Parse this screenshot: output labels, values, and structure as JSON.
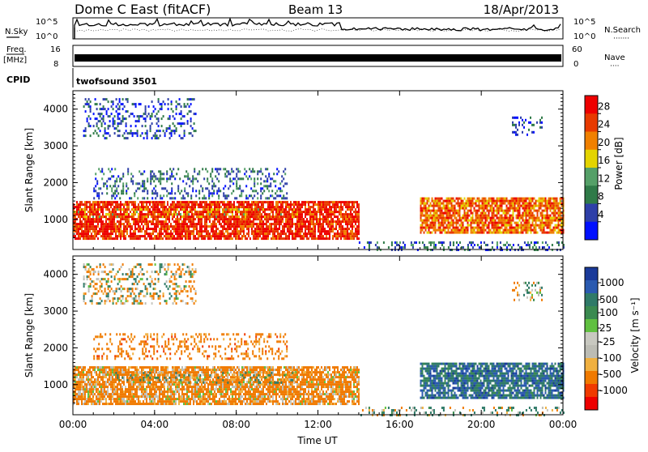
{
  "header": {
    "station": "Dome C East (fitACF)",
    "beam": "Beam 13",
    "date": "18/Apr/2013"
  },
  "aux_labels": {
    "nsky": "N.Sky",
    "nsearch": "N.Search",
    "nsearch_dots": "·······",
    "freq_line1": "Freq.",
    "freq_line2": "[MHz]",
    "nave": "Nave",
    "nave_dots": "····",
    "cpid": "CPID",
    "cpid_value": "twofsound 3501",
    "noise_top_left": "10^5",
    "noise_bottom_left": "10^0",
    "noise_top_right": "10^5",
    "noise_bottom_right": "10^0",
    "freq_tick_16": "16",
    "freq_tick_8": "8",
    "nave_tick_60": "60",
    "nave_tick_0": "0"
  },
  "colors": {
    "power_scale": [
      "#0010ff",
      "#2e3fa8",
      "#2f7a48",
      "#55a068",
      "#e4d400",
      "#f08000",
      "#e83a00",
      "#ee0000"
    ],
    "velocity_scale": [
      "#ee0000",
      "#f03a00",
      "#f07a00",
      "#f0b040",
      "#c8c8c0",
      "#bcbcb4",
      "#60c040",
      "#3a8a50",
      "#2f7a68",
      "#2a5ab0",
      "#1a3a9a"
    ],
    "ground_scatter": "#a0a0a0"
  },
  "chart_data": [
    {
      "type": "heatmap",
      "name": "power-panel",
      "xlabel": "",
      "ylabel": "Slant Range [km]",
      "x_ticks": [
        "00:00",
        "04:00",
        "08:00",
        "12:00",
        "16:00",
        "20:00",
        "00:00"
      ],
      "y_ticks": [
        1000,
        2000,
        3000,
        4000
      ],
      "xlim_hours": [
        0,
        24
      ],
      "ylim_km": [
        180,
        4500
      ],
      "colorbar": {
        "label": "Power [dB]",
        "ticks": [
          "28",
          "24",
          "20",
          "16",
          "12",
          "8",
          "4"
        ],
        "levels_dB": [
          0,
          4,
          8,
          12,
          16,
          20,
          24,
          28,
          32
        ]
      },
      "regions": [
        {
          "t": [
            0.0,
            14.0
          ],
          "r": [
            500,
            1500
          ],
          "level": "high",
          "dB": 28
        },
        {
          "t": [
            0.0,
            11.0
          ],
          "r": [
            1050,
            1300
          ],
          "level": "mid",
          "dB": 20
        },
        {
          "t": [
            1.0,
            10.5
          ],
          "r": [
            1600,
            2400
          ],
          "level": "low",
          "dB": 8
        },
        {
          "t": [
            17.0,
            24.0
          ],
          "r": [
            650,
            1600
          ],
          "level": "high",
          "dB": 24
        },
        {
          "t": [
            0.5,
            6.0
          ],
          "r": [
            3200,
            4300
          ],
          "level": "low",
          "dB": 6
        },
        {
          "t": [
            21.5,
            23.0
          ],
          "r": [
            3300,
            3800
          ],
          "level": "low",
          "dB": 6
        },
        {
          "t": [
            14.0,
            24.0
          ],
          "r": [
            180,
            400
          ],
          "level": "low",
          "dB": 8
        }
      ]
    },
    {
      "type": "heatmap",
      "name": "velocity-panel",
      "xlabel": "Time UT",
      "ylabel": "Slant Range [km]",
      "x_ticks": [
        "00:00",
        "04:00",
        "08:00",
        "12:00",
        "16:00",
        "20:00",
        "00:00"
      ],
      "y_ticks": [
        1000,
        2000,
        3000,
        4000
      ],
      "xlim_hours": [
        0,
        24
      ],
      "ylim_km": [
        180,
        4500
      ],
      "colorbar": {
        "label": "Velocity [m s⁻¹]",
        "ticks": [
          "1000",
          "500",
          "100",
          "25",
          "-25",
          "-100",
          "-500",
          "-1000"
        ],
        "levels_ms": [
          -1000,
          -500,
          -100,
          -25,
          25,
          100,
          500,
          1000
        ]
      },
      "regions": [
        {
          "t": [
            0.0,
            14.0
          ],
          "r": [
            500,
            1500
          ],
          "velocity_ms": -200
        },
        {
          "t": [
            2.0,
            11.0
          ],
          "r": [
            1050,
            1350
          ],
          "velocity_ms": 0
        },
        {
          "t": [
            1.0,
            10.5
          ],
          "r": [
            1700,
            2400
          ],
          "velocity_ms": -300
        },
        {
          "t": [
            17.0,
            24.0
          ],
          "r": [
            650,
            1600
          ],
          "velocity_ms": 300
        },
        {
          "t": [
            0.5,
            6.0
          ],
          "r": [
            3200,
            4300
          ],
          "velocity_ms": -50
        },
        {
          "t": [
            21.5,
            23.0
          ],
          "r": [
            3300,
            3800
          ],
          "velocity_ms": 0
        },
        {
          "t": [
            14.0,
            24.0
          ],
          "r": [
            180,
            400
          ],
          "velocity_ms": 50
        }
      ]
    }
  ]
}
